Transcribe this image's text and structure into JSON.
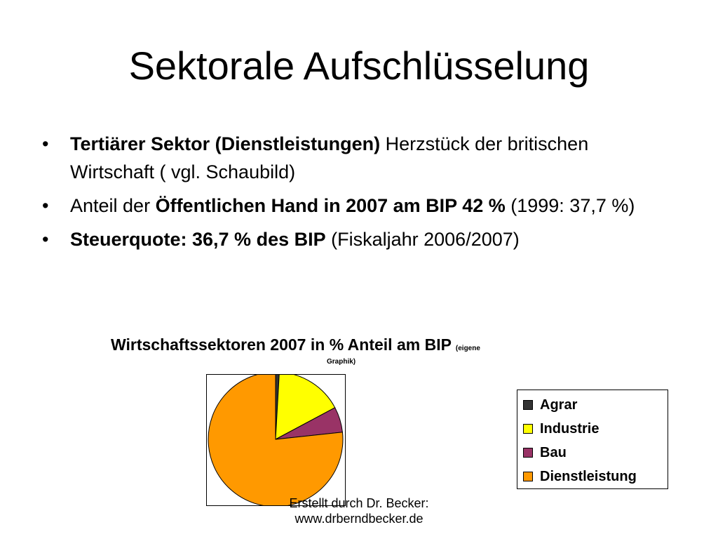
{
  "slide": {
    "title": "Sektorale Aufschlüsselung",
    "bullets": [
      {
        "bold": "Tertiärer Sektor (Dienstleistungen)",
        "text": " Herzstück der britischen Wirtschaft ( vgl. Schaubild)"
      },
      {
        "pre": "Anteil der ",
        "bold": "Öffentlichen Hand in 2007 am BIP 42 %",
        "text": " (1999: 37,7 %)"
      },
      {
        "bold": "Steuerquote: 36,7 % des BIP",
        "text": " (Fiskaljahr 2006/2007)"
      }
    ]
  },
  "chart_data": {
    "type": "pie",
    "title": "Wirtschaftssektoren 2007 in % Anteil am BIP",
    "title_note": "(eigene",
    "subtitle": "Graphik)",
    "categories": [
      "Agrar",
      "Industrie",
      "Bau",
      "Dienstleistung"
    ],
    "values": [
      0.9,
      16.3,
      6.1,
      76.7
    ],
    "colors": [
      "#333333",
      "#ffff00",
      "#993366",
      "#ff9900"
    ],
    "legend_position": "right",
    "start_angle_deg": 0,
    "direction": "clockwise"
  },
  "footer": {
    "line1": "Erstellt durch Dr. Becker:",
    "line2": "www.drberndbecker.de"
  }
}
